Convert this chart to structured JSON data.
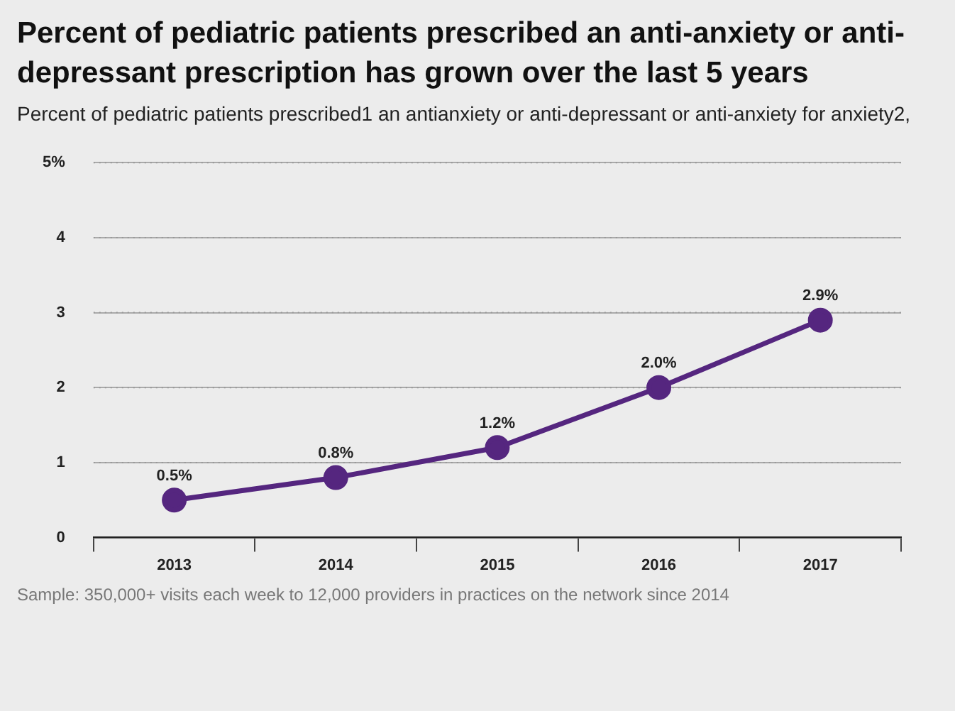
{
  "chart_data": {
    "type": "line",
    "title": "Percent of pediatric patients prescribed an anti-anxiety or anti-depressant prescription has grown over the last 5 years",
    "subtitle": "Percent of pediatric patients prescribed1 an antianxiety or anti-depressant or anti-anxiety for anxiety2,",
    "categories": [
      "2013",
      "2014",
      "2015",
      "2016",
      "2017"
    ],
    "series": [
      {
        "color": "#55267f",
        "values": [
          0.5,
          0.8,
          1.2,
          2.0,
          2.9
        ],
        "value_labels": [
          "0.5%",
          "0.8%",
          "1.2%",
          "2.0%",
          "2.9%"
        ]
      }
    ],
    "ylim": [
      0,
      5
    ],
    "yticks": [
      0,
      1,
      2,
      3,
      4,
      {
        "value": 5,
        "label": "5%"
      }
    ],
    "grid": "y",
    "marker": "circle",
    "line_style": "solid",
    "legend": false,
    "annotations": [
      "Sample: 350,000+ visits each week to 12,000 providers in practices on the network since 2014"
    ]
  }
}
